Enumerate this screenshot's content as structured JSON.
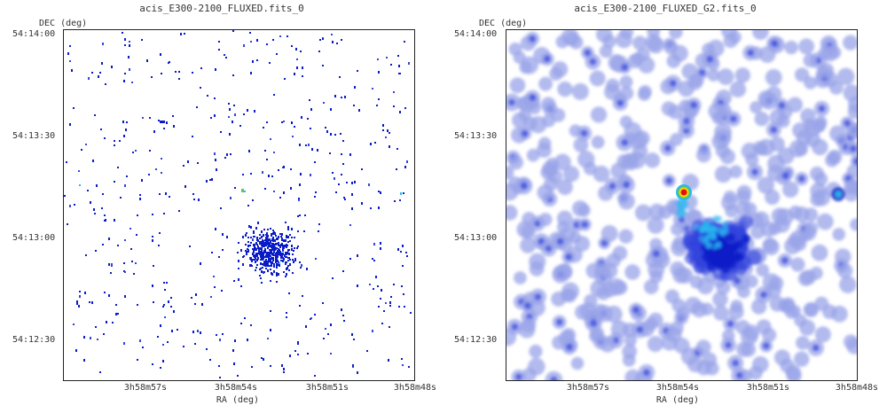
{
  "panels": [
    {
      "title": "acis_E300-2100_FLUXED.fits_0",
      "dec_label": "DEC (deg)",
      "ra_label": "RA (deg)",
      "y_ticks": [
        "54:14:00",
        "54:13:30",
        "54:13:00",
        "54:12:30"
      ],
      "x_ticks": [
        "3h58m57s",
        "3h58m54s",
        "3h58m51s",
        "3h58m48s"
      ],
      "render_style": "raw-pixels"
    },
    {
      "title": "acis_E300-2100_FLUXED_G2.fits_0",
      "dec_label": "DEC (deg)",
      "ra_label": "RA (deg)",
      "y_ticks": [
        "54:14:00",
        "54:13:30",
        "54:13:00",
        "54:12:30"
      ],
      "x_ticks": [
        "3h58m57s",
        "3h58m54s",
        "3h58m51s",
        "3h58m48s"
      ],
      "render_style": "smoothed"
    }
  ],
  "colors": {
    "background": "#ffffff",
    "faint": "#9aa4e8",
    "medium": "#3344dd",
    "strong": "#0a1cc8",
    "cyan": "#2ab8f0",
    "green": "#5ac85a",
    "yellow": "#ffd400",
    "red": "#e01010"
  }
}
